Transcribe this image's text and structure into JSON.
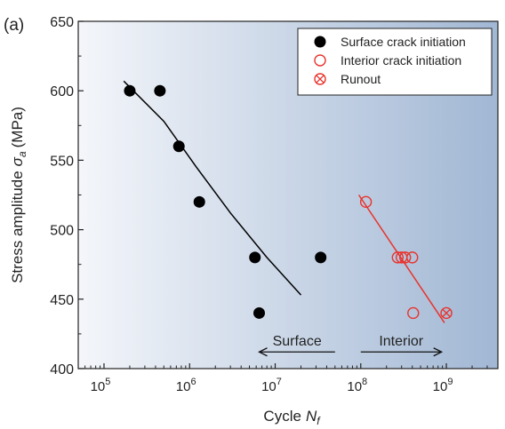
{
  "chart_data": {
    "type": "scatter",
    "panel_label": "(a)",
    "xlabel": "Cycle",
    "xlabel_symbol": "N",
    "xlabel_subscript": "f",
    "ylabel": "Stress amplitude",
    "ylabel_symbol": "σ",
    "ylabel_subscript": "a",
    "ylabel_unit": "(MPa)",
    "x_scale": "log",
    "xlim": [
      50000,
      4000000000
    ],
    "ylim": [
      400,
      650
    ],
    "x_ticks": [
      {
        "value": 100000,
        "base": "10",
        "exp": "5"
      },
      {
        "value": 1000000,
        "base": "10",
        "exp": "6"
      },
      {
        "value": 10000000,
        "base": "10",
        "exp": "7"
      },
      {
        "value": 100000000,
        "base": "10",
        "exp": "8"
      },
      {
        "value": 1000000000,
        "base": "10",
        "exp": "9"
      }
    ],
    "y_ticks": [
      "400",
      "450",
      "500",
      "550",
      "600",
      "650"
    ],
    "grid": false,
    "legend_position": "top-right",
    "background_gradient": [
      "#f4f6fa",
      "#a1b7d4"
    ],
    "series": [
      {
        "name": "Surface crack initiation",
        "marker": "filled-circle",
        "color": "#000000",
        "points": [
          {
            "x": 200000,
            "y": 600
          },
          {
            "x": 450000,
            "y": 600
          },
          {
            "x": 750000,
            "y": 560
          },
          {
            "x": 1300000,
            "y": 520
          },
          {
            "x": 5800000,
            "y": 480
          },
          {
            "x": 6500000,
            "y": 440
          },
          {
            "x": 34000000,
            "y": 480
          }
        ],
        "fit": [
          {
            "x": 170000,
            "y": 607
          },
          {
            "x": 500000,
            "y": 578
          },
          {
            "x": 1200000,
            "y": 545
          },
          {
            "x": 3000000,
            "y": 512
          },
          {
            "x": 8000000,
            "y": 480
          },
          {
            "x": 20000000,
            "y": 453
          }
        ],
        "fit_color": "#000000"
      },
      {
        "name": "Interior crack initiation",
        "marker": "open-circle",
        "color": "#e8332d",
        "points": [
          {
            "x": 115000000,
            "y": 520
          },
          {
            "x": 270000000,
            "y": 480
          },
          {
            "x": 300000000,
            "y": 480
          },
          {
            "x": 330000000,
            "y": 480
          },
          {
            "x": 400000000,
            "y": 480
          },
          {
            "x": 410000000,
            "y": 440
          }
        ],
        "fit": [
          {
            "x": 95000000,
            "y": 525
          },
          {
            "x": 950000000,
            "y": 433
          }
        ],
        "fit_color": "#e8332d"
      },
      {
        "name": "Runout",
        "marker": "crossed-circle",
        "color": "#e8332d",
        "points": [
          {
            "x": 1000000000,
            "y": 440
          }
        ]
      }
    ],
    "annotations": [
      {
        "text": "Surface",
        "arrow": "left",
        "x_from": 50000000,
        "x_to": 6500000,
        "y": 412
      },
      {
        "text": "Interior",
        "arrow": "right",
        "x_from": 100000000,
        "x_to": 880000000,
        "y": 412
      }
    ]
  }
}
